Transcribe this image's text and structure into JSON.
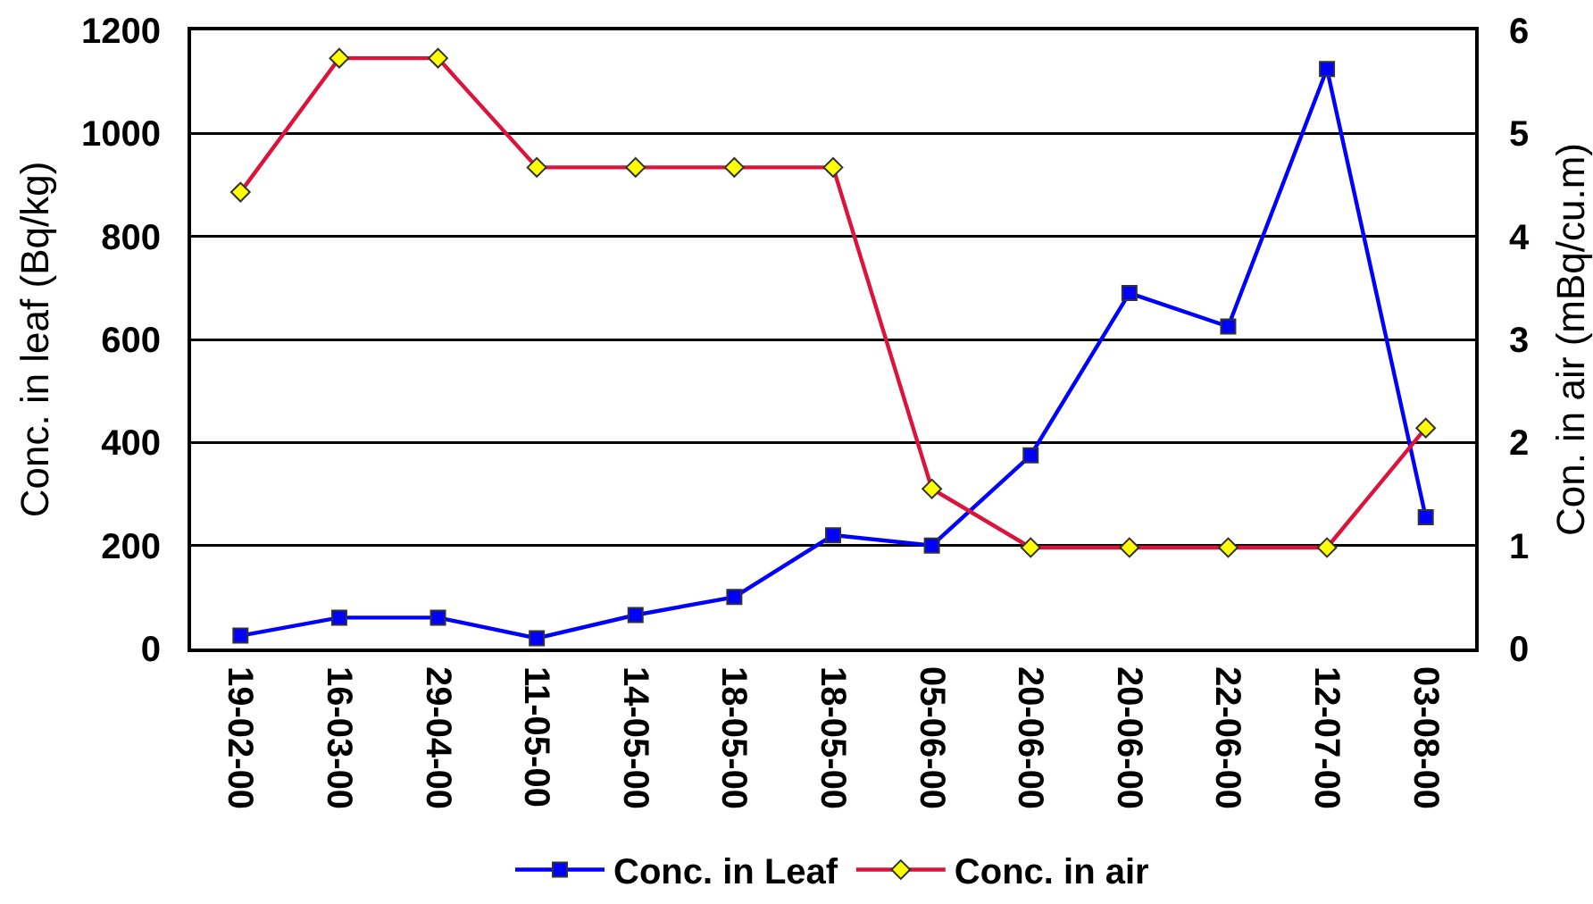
{
  "chart_data": {
    "type": "line",
    "categories": [
      "19-02-00",
      "16-03-00",
      "29-04-00",
      "11-05-00",
      "14-05-00",
      "18-05-00",
      "18-05-00",
      "05-06-00",
      "20-06-00",
      "20-06-00",
      "22-06-00",
      "12-07-00",
      "03-08-00"
    ],
    "ylabel": "Conc. in leaf (Bq/kg)",
    "y2label": "Con. in air (mBq/cu.m)",
    "ylim": [
      0,
      1200
    ],
    "yticks": [
      0,
      200,
      400,
      600,
      800,
      1000,
      1200
    ],
    "y2lim": [
      0,
      6
    ],
    "y2ticks": [
      0,
      1,
      2,
      3,
      4,
      5,
      6
    ],
    "grid": "y",
    "legend": "bottom",
    "line_style": "solid",
    "series": [
      {
        "name": "Conc. in Leaf",
        "color": "#0000ff",
        "marker": "square",
        "values": [
          25,
          60,
          60,
          20,
          65,
          100,
          220,
          200,
          375,
          690,
          625,
          1125,
          255
        ]
      },
      {
        "name": "Conc. in air",
        "color": "#dc143c",
        "colors": [
          "#ffff00",
          "#ffff00",
          "#ffff00",
          "#ffff00",
          "#ffff00",
          "#ffff00",
          "#ffff00",
          "#ffff00",
          "#ffff00",
          "#ffff00",
          "#ffff00",
          "#ffff00",
          "#ffff00"
        ],
        "marker": "diamond",
        "axis": "y2",
        "values": [
          4.43,
          5.73,
          5.73,
          4.67,
          4.67,
          4.67,
          4.67,
          1.55,
          0.98,
          0.98,
          0.98,
          0.98,
          2.14
        ]
      }
    ]
  }
}
